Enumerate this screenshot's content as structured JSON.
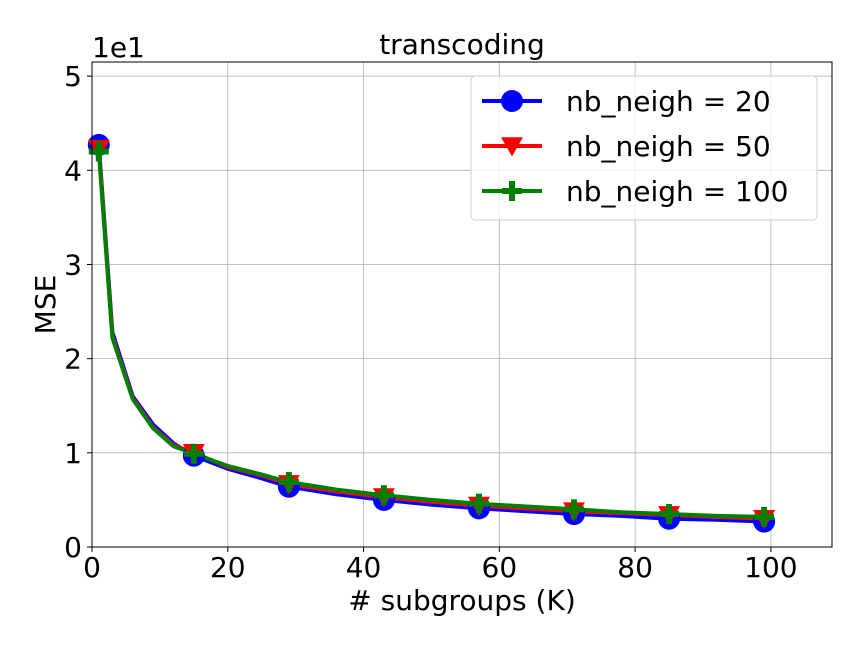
{
  "chart_data": {
    "type": "line",
    "title": "transcoding",
    "xlabel": "# subgroups (K)",
    "ylabel": "MSE",
    "y_multiplier_label": "1e1",
    "xlim": [
      0,
      109
    ],
    "ylim": [
      0,
      5.15
    ],
    "xticks": [
      0,
      20,
      40,
      60,
      80,
      100
    ],
    "yticks": [
      0,
      1,
      2,
      3,
      4,
      5
    ],
    "grid": true,
    "legend_position": "top-right",
    "x": [
      1,
      3,
      6,
      9,
      12,
      15,
      20,
      25,
      29,
      36,
      43,
      50,
      57,
      64,
      71,
      78,
      85,
      92,
      99
    ],
    "series": [
      {
        "name": "nb_neigh = 20",
        "color": "#0000ff",
        "marker": "circle",
        "marker_x": [
          1,
          15,
          29,
          43,
          57,
          71,
          85,
          99
        ],
        "values": [
          4.27,
          2.28,
          1.6,
          1.3,
          1.1,
          0.97,
          0.83,
          0.73,
          0.64,
          0.56,
          0.5,
          0.45,
          0.41,
          0.38,
          0.35,
          0.33,
          0.3,
          0.29,
          0.27
        ]
      },
      {
        "name": "nb_neigh = 50",
        "color": "#ff0000",
        "marker": "triangle-down",
        "marker_x": [
          1,
          15,
          29,
          43,
          57,
          71,
          85,
          99
        ],
        "values": [
          4.23,
          2.24,
          1.58,
          1.27,
          1.08,
          1.0,
          0.85,
          0.76,
          0.67,
          0.59,
          0.53,
          0.48,
          0.44,
          0.41,
          0.38,
          0.36,
          0.34,
          0.32,
          0.3
        ]
      },
      {
        "name": "nb_neigh = 100",
        "color": "#008000",
        "marker": "plus",
        "marker_x": [
          1,
          15,
          29,
          43,
          57,
          71,
          85,
          99
        ],
        "values": [
          4.2,
          2.22,
          1.57,
          1.26,
          1.07,
          0.99,
          0.86,
          0.77,
          0.69,
          0.61,
          0.55,
          0.5,
          0.46,
          0.43,
          0.4,
          0.37,
          0.35,
          0.33,
          0.32
        ]
      }
    ]
  }
}
